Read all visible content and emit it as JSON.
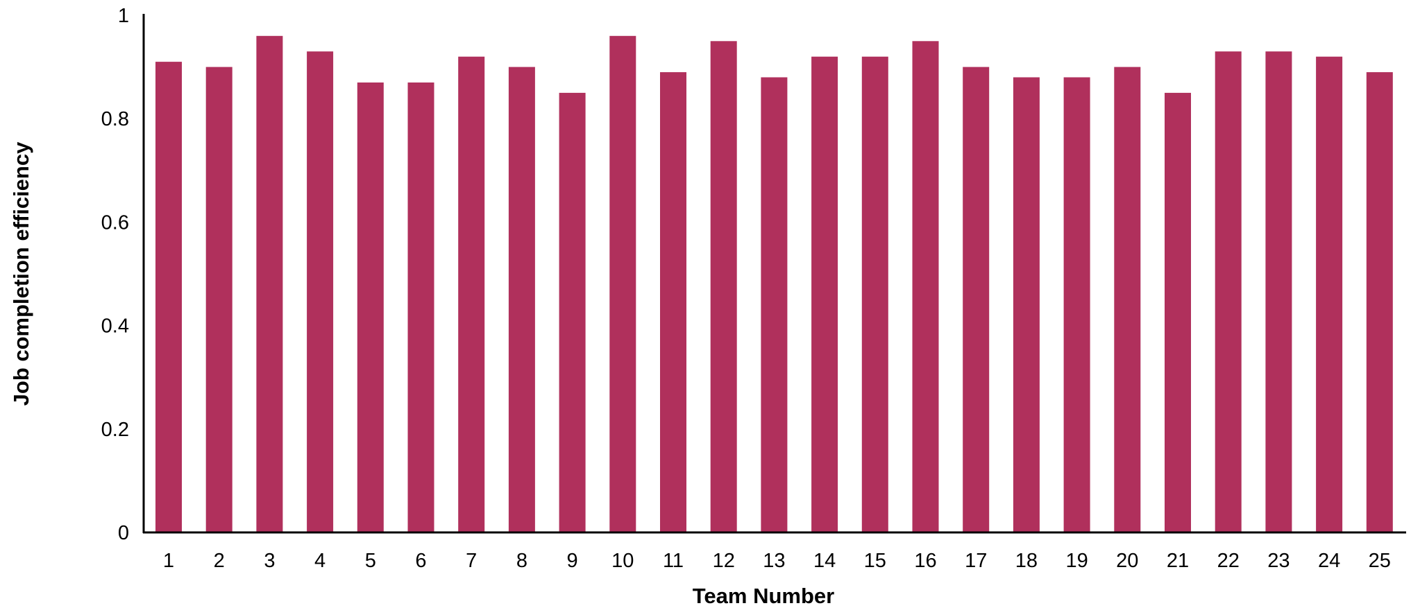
{
  "chart_data": {
    "type": "bar",
    "xlabel": "Team Number",
    "ylabel": "Job completion efficiency",
    "ylim": [
      0,
      1
    ],
    "yticks": [
      "0",
      "0.2",
      "0.4",
      "0.6",
      "0.8",
      "1"
    ],
    "ytick_values": [
      0,
      0.2,
      0.4,
      0.6,
      0.8,
      1
    ],
    "categories": [
      "1",
      "2",
      "3",
      "4",
      "5",
      "6",
      "7",
      "8",
      "9",
      "10",
      "11",
      "12",
      "13",
      "14",
      "15",
      "16",
      "17",
      "18",
      "19",
      "20",
      "21",
      "22",
      "23",
      "24",
      "25"
    ],
    "values": [
      0.91,
      0.9,
      0.96,
      0.93,
      0.87,
      0.87,
      0.92,
      0.9,
      0.85,
      0.96,
      0.89,
      0.95,
      0.88,
      0.92,
      0.92,
      0.95,
      0.9,
      0.88,
      0.88,
      0.9,
      0.85,
      0.93,
      0.93,
      0.92,
      0.89
    ],
    "grid": false,
    "legend": "none",
    "colors": {
      "bar": "#b0305c",
      "axis": "#000000"
    }
  }
}
